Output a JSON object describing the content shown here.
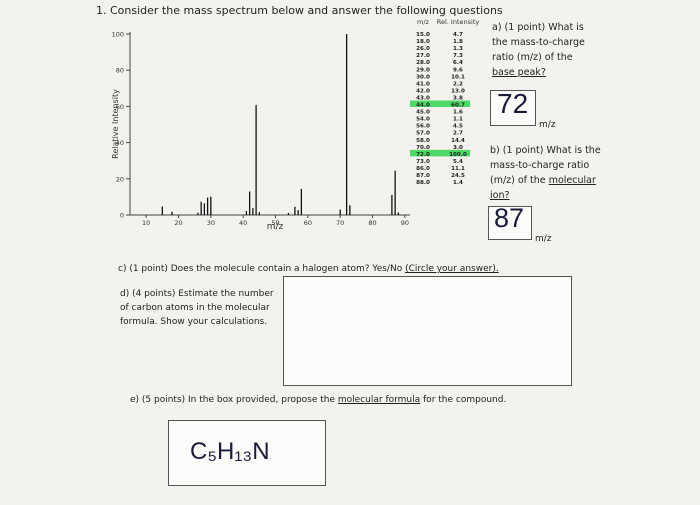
{
  "header": {
    "title": "1. Consider the mass spectrum below and answer the following questions"
  },
  "spectrum": {
    "type": "bar",
    "x_label": "m/z",
    "y_label": "Relative Intensity",
    "x": [
      15,
      18,
      26,
      27,
      28,
      29,
      30,
      41,
      42,
      43,
      44,
      45,
      54,
      56,
      57,
      58,
      70,
      72,
      73,
      86,
      87,
      88
    ],
    "values": [
      4.7,
      1.8,
      1.3,
      7.3,
      6.4,
      9.6,
      10.1,
      2.2,
      13.0,
      3.8,
      60.7,
      1.6,
      1.1,
      4.5,
      2.7,
      14.4,
      3.0,
      100.0,
      5.4,
      11.1,
      24.5,
      1.4
    ],
    "color": "#111111",
    "xlim": [
      5,
      95
    ],
    "ylim": [
      0,
      100
    ],
    "xticks": [
      10,
      20,
      30,
      40,
      50,
      60,
      70,
      80,
      90
    ],
    "yticks": [
      0,
      20,
      40,
      60,
      80,
      100
    ]
  },
  "table": {
    "header": [
      "m/z",
      "Rel. Intensity"
    ],
    "rows": [
      [
        "15.0",
        "4.7"
      ],
      [
        "18.0",
        "1.8"
      ],
      [
        "26.0",
        "1.3"
      ],
      [
        "27.0",
        "7.3"
      ],
      [
        "28.0",
        "6.4"
      ],
      [
        "29.0",
        "9.6"
      ],
      [
        "30.0",
        "10.1"
      ],
      [
        "41.0",
        "2.2"
      ],
      [
        "42.0",
        "13.0"
      ],
      [
        "43.0",
        "3.8"
      ],
      [
        "44.0",
        "60.7"
      ],
      [
        "45.0",
        "1.6"
      ],
      [
        "54.0",
        "1.1"
      ],
      [
        "56.0",
        "4.5"
      ],
      [
        "57.0",
        "2.7"
      ],
      [
        "58.0",
        "14.4"
      ],
      [
        "70.0",
        "3.0"
      ],
      [
        "72.0",
        "100.0"
      ],
      [
        "73.0",
        "5.4"
      ],
      [
        "86.0",
        "11.1"
      ],
      [
        "87.0",
        "24.5"
      ],
      [
        "88.0",
        "1.4"
      ]
    ],
    "highlighted": [
      10,
      17
    ],
    "highlight_color": "#4cd964"
  },
  "questions": {
    "a": {
      "text": "a) (1 point) What is the mass-to-charge ratio (m/z) of the",
      "underlined": "base peak?"
    },
    "b": {
      "text": "b) (1 point) What is the mass-to-charge ratio (m/z) of the",
      "underlined": "molecular ion?"
    },
    "c": {
      "text": "c) (1 point) Does the molecule contain a halogen atom? Yes/No",
      "underlined": "(Circle your answer)."
    },
    "d": {
      "text": "d) (4 points) Estimate the number of carbon atoms in the molecular formula. Show your calculations."
    },
    "e": {
      "text": "e) (5 points) In the box provided, propose the",
      "underlined": "molecular formula",
      "tail": " for the compound."
    }
  },
  "answers": {
    "a": {
      "value": "72",
      "unit": "m/z"
    },
    "b": {
      "value": "87",
      "unit": "m/z"
    },
    "e": "C₅H₁₃N"
  }
}
